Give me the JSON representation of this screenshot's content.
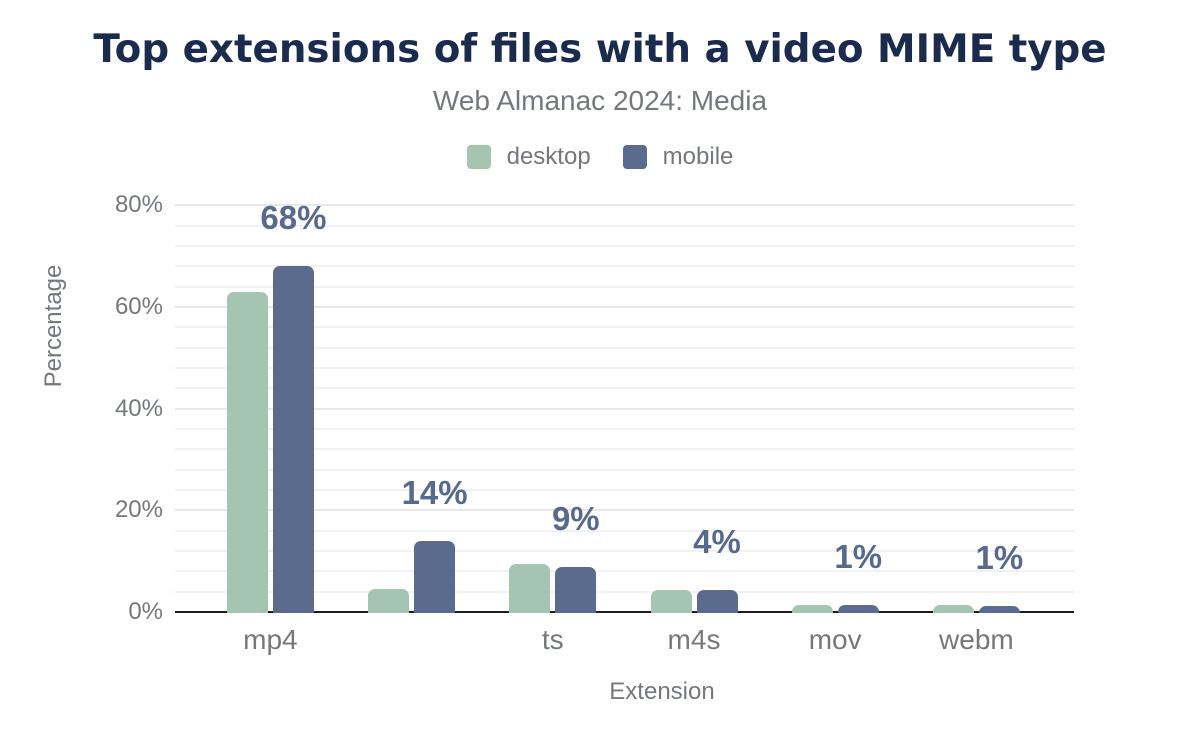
{
  "chart_data": {
    "type": "bar",
    "title": "Top extensions of files with a video MIME type",
    "subtitle": "Web Almanac 2024: Media",
    "xlabel": "Extension",
    "ylabel": "Percentage",
    "categories": [
      "mp4",
      "",
      "ts",
      "m4s",
      "mov",
      "webm"
    ],
    "series": [
      {
        "name": "desktop",
        "color": "#a5c4b2",
        "values": [
          63.0,
          4.5,
          9.4,
          4.3,
          1.3,
          1.3
        ]
      },
      {
        "name": "mobile",
        "color": "#5a6b8e",
        "values": [
          68.0,
          13.9,
          8.9,
          4.3,
          1.3,
          1.2
        ]
      }
    ],
    "value_labels": {
      "series": "mobile",
      "labels": [
        "68%",
        "14%",
        "9%",
        "4%",
        "1%",
        "1%"
      ]
    },
    "ylim": [
      0,
      80
    ],
    "y_ticks": [
      "0%",
      "20%",
      "40%",
      "60%",
      "80%"
    ],
    "y_tick_values": [
      0,
      20,
      40,
      60,
      80
    ],
    "y_minor_grid_step": 4,
    "grid": "on",
    "legend_position": "top-center"
  },
  "colors": {
    "title": "#1a2b4d",
    "text_muted": "#75787b",
    "value_label": "#57698e",
    "axis_line": "#1c1c1c",
    "grid_major": "#e7e7e7",
    "grid_minor": "#f1f1f1",
    "background": "#ffffff"
  }
}
